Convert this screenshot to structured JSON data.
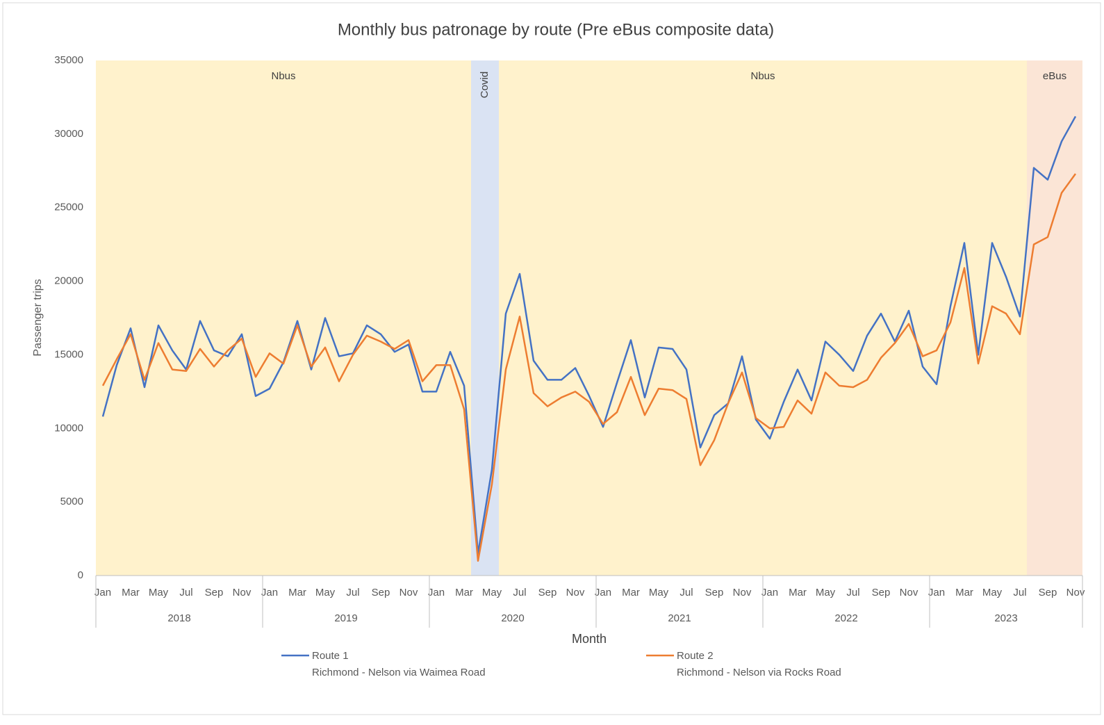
{
  "chart_data": {
    "type": "line",
    "title": "Monthly bus patronage by route (Pre eBus composite data)",
    "x_label": "Month",
    "y_label": "Passenger trips",
    "categories": [
      "Jan",
      null,
      "Mar",
      null,
      "May",
      null,
      "Jul",
      null,
      "Sep",
      null,
      "Nov",
      null,
      "Jan",
      null,
      "Mar",
      null,
      "May",
      null,
      "Jul",
      null,
      "Sep",
      null,
      "Nov",
      null,
      "Jan",
      null,
      "Mar",
      null,
      "May",
      null,
      "Jul",
      null,
      "Sep",
      null,
      "Nov",
      null,
      "Jan",
      null,
      "Mar",
      null,
      "May",
      null,
      "Jul",
      null,
      "Sep",
      null,
      "Nov",
      null,
      "Jan",
      null,
      "Mar",
      null,
      "May",
      null,
      "Jul",
      null,
      "Sep",
      null,
      "Nov",
      null,
      "Jan",
      null,
      "Mar",
      null,
      "May",
      null,
      "Jul",
      null,
      "Sep",
      null,
      "Nov"
    ],
    "groups": [
      {
        "label": "2018",
        "span": 12
      },
      {
        "label": "2019",
        "span": 12
      },
      {
        "label": "2020",
        "span": 12
      },
      {
        "label": "2021",
        "span": 12
      },
      {
        "label": "2022",
        "span": 12
      },
      {
        "label": "2023",
        "span": 11
      }
    ],
    "periods": [
      {
        "label": "Nbus",
        "span": 27,
        "color": "#fff2cc"
      },
      {
        "label": "Covid",
        "span": 2,
        "color": "#dae3f3",
        "vertical": true
      },
      {
        "label": "Nbus",
        "span": 38,
        "color": "#fff2cc"
      },
      {
        "label": "eBus",
        "span": 4,
        "color": "#fbe5d6"
      }
    ],
    "series": [
      {
        "name": "Route 1",
        "description": "Richmond - Nelson via Waimea Road",
        "color": "#4472c4",
        "values": [
          10800,
          14300,
          16800,
          12800,
          17000,
          15300,
          14000,
          17300,
          15300,
          14900,
          16400,
          12200,
          12700,
          14500,
          17300,
          14000,
          17500,
          14900,
          15100,
          17000,
          16400,
          15200,
          15700,
          12500,
          12500,
          15200,
          12900,
          1500,
          7200,
          17800,
          20500,
          14600,
          13300,
          13300,
          14100,
          12200,
          10100,
          13100,
          16000,
          12100,
          15500,
          15400,
          14000,
          8700,
          10900,
          11700,
          14900,
          10600,
          9300,
          11800,
          14000,
          11900,
          15900,
          15000,
          13900,
          16300,
          17800,
          15900,
          18000,
          14200,
          13000,
          18300,
          22600,
          15000,
          22600,
          20300,
          17600,
          27700,
          26900,
          29500,
          31200
        ]
      },
      {
        "name": "Route 2",
        "description": "Richmond - Nelson via Rocks Road",
        "color": "#ed7d31",
        "values": [
          12900,
          14700,
          16400,
          13300,
          15800,
          14000,
          13900,
          15400,
          14200,
          15300,
          16100,
          13500,
          15100,
          14400,
          17000,
          14200,
          15500,
          13200,
          15000,
          16300,
          15900,
          15400,
          16000,
          13200,
          14300,
          14300,
          11300,
          1000,
          6200,
          14000,
          17600,
          12400,
          11500,
          12100,
          12500,
          11800,
          10300,
          11100,
          13500,
          10900,
          12700,
          12600,
          12000,
          7500,
          9200,
          11700,
          13800,
          10700,
          10000,
          10100,
          11900,
          11000,
          13800,
          12900,
          12800,
          13300,
          14800,
          15800,
          17100,
          14900,
          15300,
          17200,
          20900,
          14400,
          18300,
          17800,
          16400,
          22500,
          23000,
          26000,
          27300
        ]
      }
    ],
    "ylim": [
      0,
      35000
    ],
    "yticks": [
      0,
      5000,
      10000,
      15000,
      20000,
      25000,
      30000,
      35000
    ],
    "grid": false
  }
}
